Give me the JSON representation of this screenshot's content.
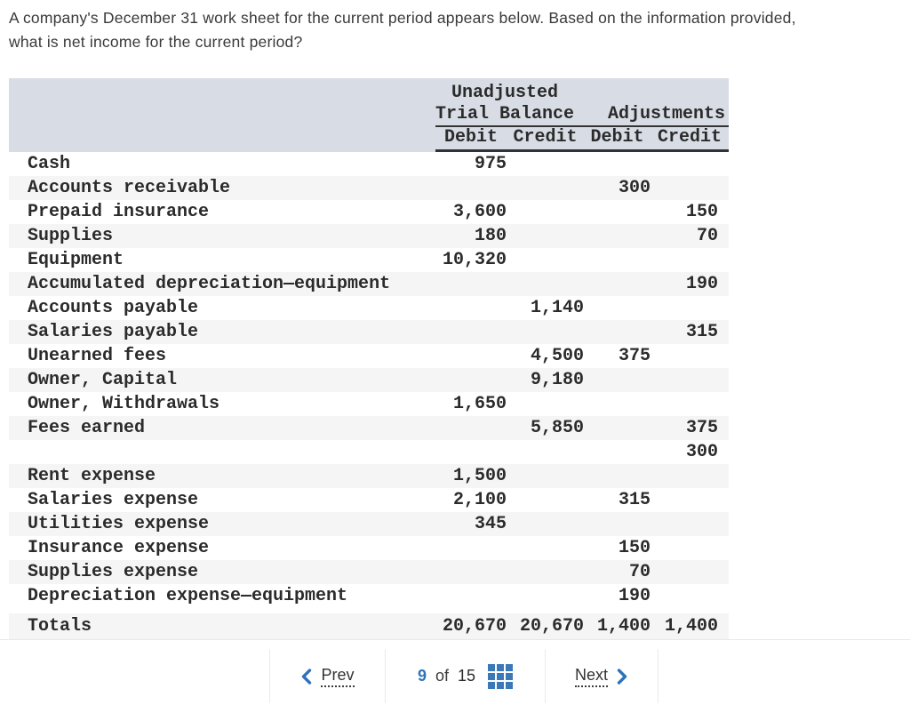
{
  "question": {
    "text_line1": "A company's December 31 work sheet for the current period appears below. Based on the information provided,",
    "text_line2": "what is net income for the current period?"
  },
  "worksheet": {
    "header": {
      "unadjusted_label": "Unadjusted",
      "trial_balance_label": "Trial Balance",
      "adjustments_label": "Adjustments",
      "subcolumns": [
        "Debit",
        "Credit",
        "Debit",
        "Credit"
      ]
    },
    "rows": [
      {
        "account": "Cash",
        "utb_debit": "975",
        "utb_credit": "",
        "adj_debit": "",
        "adj_credit": ""
      },
      {
        "account": "Accounts receivable",
        "utb_debit": "",
        "utb_credit": "",
        "adj_debit": "300",
        "adj_credit": ""
      },
      {
        "account": "Prepaid insurance",
        "utb_debit": "3,600",
        "utb_credit": "",
        "adj_debit": "",
        "adj_credit": "150"
      },
      {
        "account": "Supplies",
        "utb_debit": "180",
        "utb_credit": "",
        "adj_debit": "",
        "adj_credit": "70"
      },
      {
        "account": "Equipment",
        "utb_debit": "10,320",
        "utb_credit": "",
        "adj_debit": "",
        "adj_credit": ""
      },
      {
        "account": "Accumulated depreciation—equipment",
        "utb_debit": "",
        "utb_credit": "",
        "adj_debit": "",
        "adj_credit": "190"
      },
      {
        "account": "Accounts payable",
        "utb_debit": "",
        "utb_credit": "1,140",
        "adj_debit": "",
        "adj_credit": ""
      },
      {
        "account": "Salaries payable",
        "utb_debit": "",
        "utb_credit": "",
        "adj_debit": "",
        "adj_credit": "315"
      },
      {
        "account": "Unearned fees",
        "utb_debit": "",
        "utb_credit": "4,500",
        "adj_debit": "375",
        "adj_credit": ""
      },
      {
        "account": "Owner, Capital",
        "utb_debit": "",
        "utb_credit": "9,180",
        "adj_debit": "",
        "adj_credit": ""
      },
      {
        "account": "Owner, Withdrawals",
        "utb_debit": "1,650",
        "utb_credit": "",
        "adj_debit": "",
        "adj_credit": ""
      },
      {
        "account": "Fees earned",
        "utb_debit": "",
        "utb_credit": "5,850",
        "adj_debit": "",
        "adj_credit": "375"
      },
      {
        "account": "",
        "utb_debit": "",
        "utb_credit": "",
        "adj_debit": "",
        "adj_credit": "300"
      },
      {
        "account": "Rent expense",
        "utb_debit": "1,500",
        "utb_credit": "",
        "adj_debit": "",
        "adj_credit": ""
      },
      {
        "account": "Salaries expense",
        "utb_debit": "2,100",
        "utb_credit": "",
        "adj_debit": "315",
        "adj_credit": ""
      },
      {
        "account": "Utilities expense",
        "utb_debit": "345",
        "utb_credit": "",
        "adj_debit": "",
        "adj_credit": ""
      },
      {
        "account": "Insurance expense",
        "utb_debit": "",
        "utb_credit": "",
        "adj_debit": "150",
        "adj_credit": ""
      },
      {
        "account": "Supplies expense",
        "utb_debit": "",
        "utb_credit": "",
        "adj_debit": "70",
        "adj_credit": ""
      },
      {
        "account": "Depreciation expense—equipment",
        "utb_debit": "",
        "utb_credit": "",
        "adj_debit": "190",
        "adj_credit": ""
      }
    ],
    "totals": {
      "label": "Totals",
      "utb_debit": "20,670",
      "utb_credit": "20,670",
      "adj_debit": "1,400",
      "adj_credit": "1,400"
    }
  },
  "pagination": {
    "prev_label": "Prev",
    "page_current": "9",
    "of_label": "of",
    "page_total": "15",
    "next_label": "Next",
    "icons": {
      "prev": "chevron-left",
      "next": "chevron-right",
      "pages": "grid"
    }
  },
  "colors": {
    "header_band": "#d8dde5",
    "row_stripe": "#f5f5f5",
    "accent_blue": "#2e73ba",
    "grid_icon_blue": "#3b78b8",
    "rule_dark": "#333333",
    "divider_light": "#e8e8e8",
    "text_dark": "#3a3a3a"
  }
}
